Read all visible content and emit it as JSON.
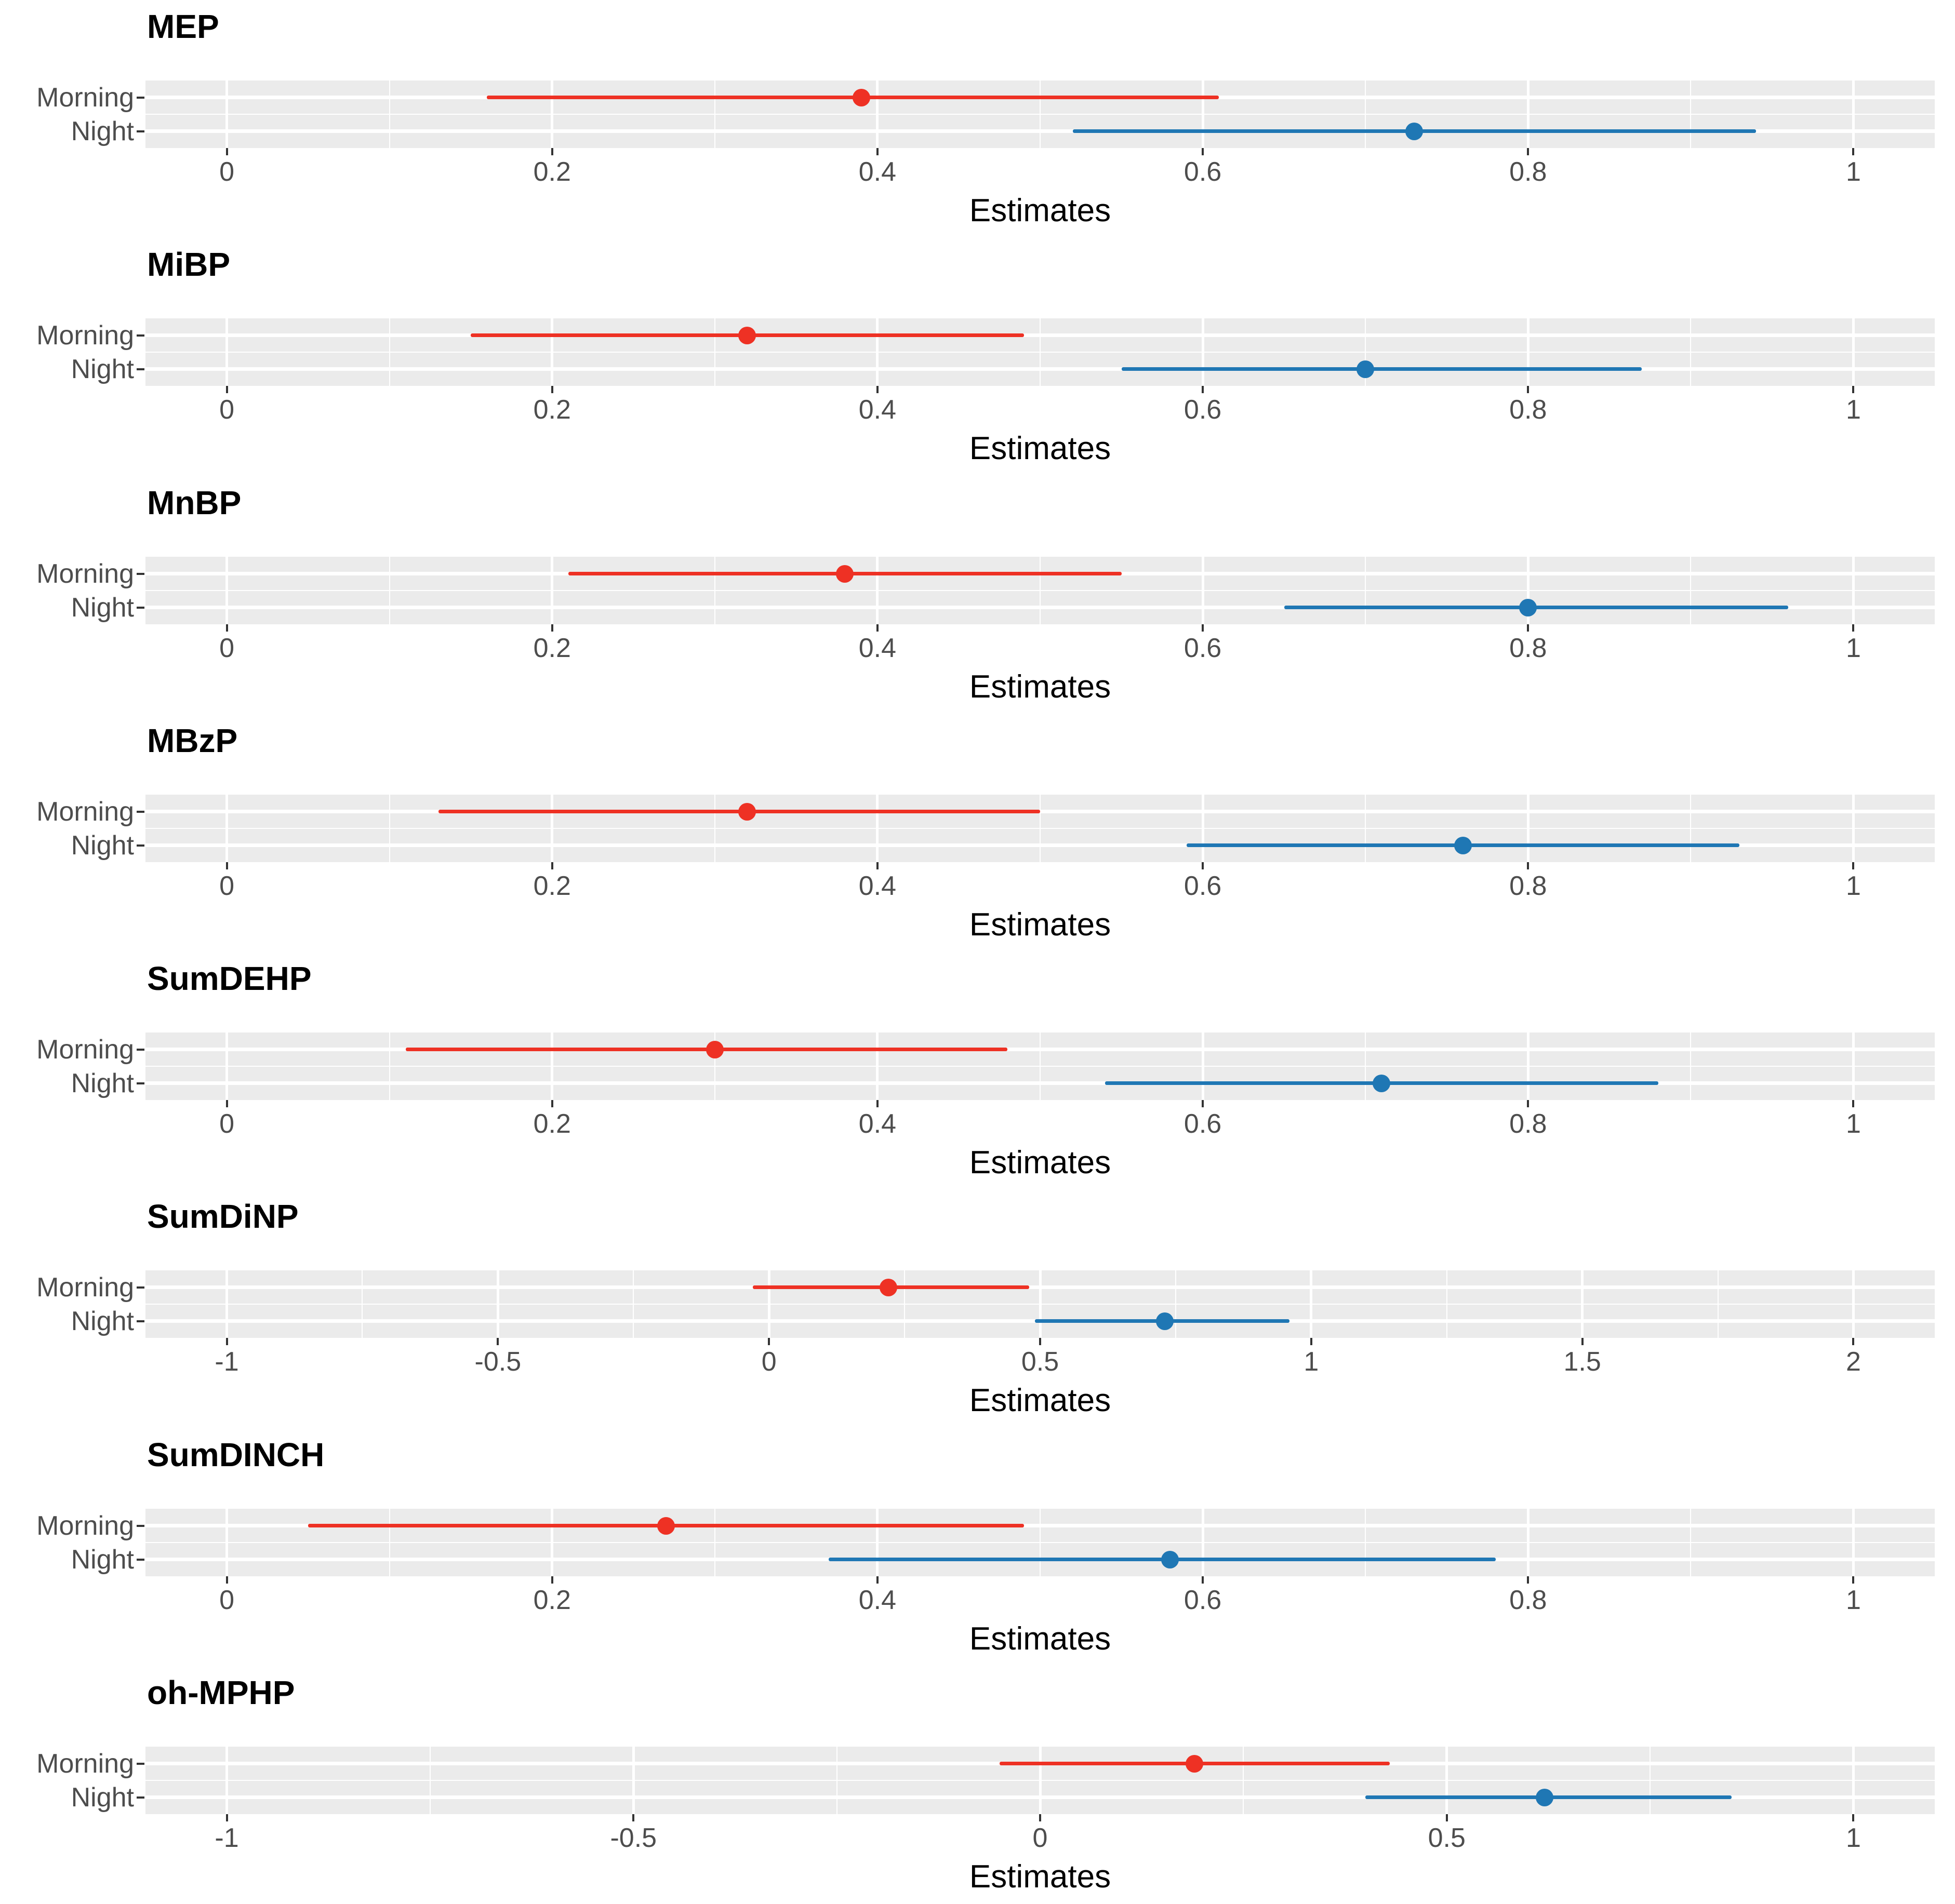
{
  "figure": {
    "background": "#FFFFFF"
  },
  "chart_data": {
    "type": "pointrange-forest",
    "xlabel": "Estimates",
    "categories": [
      "Morning",
      "Night"
    ],
    "legend": "none",
    "grid": true,
    "panel_background": "#EBEBEB",
    "gridline_color": "#FFFFFF",
    "axis_text_color": "#4D4D4D",
    "tick_mark_color": "#333333",
    "series_colors": {
      "Morning": "#EE3124",
      "Night": "#1F77B4"
    },
    "panels": [
      {
        "title": "MEP",
        "xlim": [
          -0.05,
          1.05
        ],
        "ticks": [
          {
            "v": 0,
            "label": "0"
          },
          {
            "v": 0.2,
            "label": "0.2"
          },
          {
            "v": 0.4,
            "label": "0.4"
          },
          {
            "v": 0.6,
            "label": "0.6"
          },
          {
            "v": 0.8,
            "label": "0.8"
          },
          {
            "v": 1,
            "label": "1"
          }
        ],
        "minor_ticks": [
          0.1,
          0.3,
          0.5,
          0.7,
          0.9
        ],
        "rows": [
          {
            "label": "Morning",
            "series": "Morning",
            "estimate": 0.39,
            "ci_low": 0.16,
            "ci_high": 0.61
          },
          {
            "label": "Night",
            "series": "Night",
            "estimate": 0.73,
            "ci_low": 0.52,
            "ci_high": 0.94
          }
        ]
      },
      {
        "title": "MiBP",
        "xlim": [
          -0.05,
          1.05
        ],
        "ticks": [
          {
            "v": 0,
            "label": "0"
          },
          {
            "v": 0.2,
            "label": "0.2"
          },
          {
            "v": 0.4,
            "label": "0.4"
          },
          {
            "v": 0.6,
            "label": "0.6"
          },
          {
            "v": 0.8,
            "label": "0.8"
          },
          {
            "v": 1,
            "label": "1"
          }
        ],
        "minor_ticks": [
          0.1,
          0.3,
          0.5,
          0.7,
          0.9
        ],
        "rows": [
          {
            "label": "Morning",
            "series": "Morning",
            "estimate": 0.32,
            "ci_low": 0.15,
            "ci_high": 0.49
          },
          {
            "label": "Night",
            "series": "Night",
            "estimate": 0.7,
            "ci_low": 0.55,
            "ci_high": 0.87
          }
        ]
      },
      {
        "title": "MnBP",
        "xlim": [
          -0.05,
          1.05
        ],
        "ticks": [
          {
            "v": 0,
            "label": "0"
          },
          {
            "v": 0.2,
            "label": "0.2"
          },
          {
            "v": 0.4,
            "label": "0.4"
          },
          {
            "v": 0.6,
            "label": "0.6"
          },
          {
            "v": 0.8,
            "label": "0.8"
          },
          {
            "v": 1,
            "label": "1"
          }
        ],
        "minor_ticks": [
          0.1,
          0.3,
          0.5,
          0.7,
          0.9
        ],
        "rows": [
          {
            "label": "Morning",
            "series": "Morning",
            "estimate": 0.38,
            "ci_low": 0.21,
            "ci_high": 0.55
          },
          {
            "label": "Night",
            "series": "Night",
            "estimate": 0.8,
            "ci_low": 0.65,
            "ci_high": 0.96
          }
        ]
      },
      {
        "title": "MBzP",
        "xlim": [
          -0.05,
          1.05
        ],
        "ticks": [
          {
            "v": 0,
            "label": "0"
          },
          {
            "v": 0.2,
            "label": "0.2"
          },
          {
            "v": 0.4,
            "label": "0.4"
          },
          {
            "v": 0.6,
            "label": "0.6"
          },
          {
            "v": 0.8,
            "label": "0.8"
          },
          {
            "v": 1,
            "label": "1"
          }
        ],
        "minor_ticks": [
          0.1,
          0.3,
          0.5,
          0.7,
          0.9
        ],
        "rows": [
          {
            "label": "Morning",
            "series": "Morning",
            "estimate": 0.32,
            "ci_low": 0.13,
            "ci_high": 0.5
          },
          {
            "label": "Night",
            "series": "Night",
            "estimate": 0.76,
            "ci_low": 0.59,
            "ci_high": 0.93
          }
        ]
      },
      {
        "title": "SumDEHP",
        "xlim": [
          -0.05,
          1.05
        ],
        "ticks": [
          {
            "v": 0,
            "label": "0"
          },
          {
            "v": 0.2,
            "label": "0.2"
          },
          {
            "v": 0.4,
            "label": "0.4"
          },
          {
            "v": 0.6,
            "label": "0.6"
          },
          {
            "v": 0.8,
            "label": "0.8"
          },
          {
            "v": 1,
            "label": "1"
          }
        ],
        "minor_ticks": [
          0.1,
          0.3,
          0.5,
          0.7,
          0.9
        ],
        "rows": [
          {
            "label": "Morning",
            "series": "Morning",
            "estimate": 0.3,
            "ci_low": 0.11,
            "ci_high": 0.48
          },
          {
            "label": "Night",
            "series": "Night",
            "estimate": 0.71,
            "ci_low": 0.54,
            "ci_high": 0.88
          }
        ]
      },
      {
        "title": "SumDiNP",
        "xlim": [
          -1.15,
          2.15
        ],
        "ticks": [
          {
            "v": -1,
            "label": "-1"
          },
          {
            "v": -0.5,
            "label": "-0.5"
          },
          {
            "v": 0,
            "label": "0"
          },
          {
            "v": 0.5,
            "label": "0.5"
          },
          {
            "v": 1,
            "label": "1"
          },
          {
            "v": 1.5,
            "label": "1.5"
          },
          {
            "v": 2,
            "label": "2"
          }
        ],
        "minor_ticks": [
          -0.75,
          -0.25,
          0.25,
          0.75,
          1.25,
          1.75
        ],
        "rows": [
          {
            "label": "Morning",
            "series": "Morning",
            "estimate": 0.22,
            "ci_low": -0.03,
            "ci_high": 0.48
          },
          {
            "label": "Night",
            "series": "Night",
            "estimate": 0.73,
            "ci_low": 0.49,
            "ci_high": 0.96
          }
        ]
      },
      {
        "title": "SumDINCH",
        "xlim": [
          -0.05,
          1.05
        ],
        "ticks": [
          {
            "v": 0,
            "label": "0"
          },
          {
            "v": 0.2,
            "label": "0.2"
          },
          {
            "v": 0.4,
            "label": "0.4"
          },
          {
            "v": 0.6,
            "label": "0.6"
          },
          {
            "v": 0.8,
            "label": "0.8"
          },
          {
            "v": 1,
            "label": "1"
          }
        ],
        "minor_ticks": [
          0.1,
          0.3,
          0.5,
          0.7,
          0.9
        ],
        "rows": [
          {
            "label": "Morning",
            "series": "Morning",
            "estimate": 0.27,
            "ci_low": 0.05,
            "ci_high": 0.49
          },
          {
            "label": "Night",
            "series": "Night",
            "estimate": 0.58,
            "ci_low": 0.37,
            "ci_high": 0.78
          }
        ]
      },
      {
        "title": "oh-MPHP",
        "xlim": [
          -1.1,
          1.1
        ],
        "ticks": [
          {
            "v": -1,
            "label": "-1"
          },
          {
            "v": -0.5,
            "label": "-0.5"
          },
          {
            "v": 0,
            "label": "0"
          },
          {
            "v": 0.5,
            "label": "0.5"
          },
          {
            "v": 1,
            "label": "1"
          }
        ],
        "minor_ticks": [
          -0.75,
          -0.25,
          0.25,
          0.75
        ],
        "rows": [
          {
            "label": "Morning",
            "series": "Morning",
            "estimate": 0.19,
            "ci_low": -0.05,
            "ci_high": 0.43
          },
          {
            "label": "Night",
            "series": "Night",
            "estimate": 0.62,
            "ci_low": 0.4,
            "ci_high": 0.85
          }
        ]
      }
    ]
  }
}
